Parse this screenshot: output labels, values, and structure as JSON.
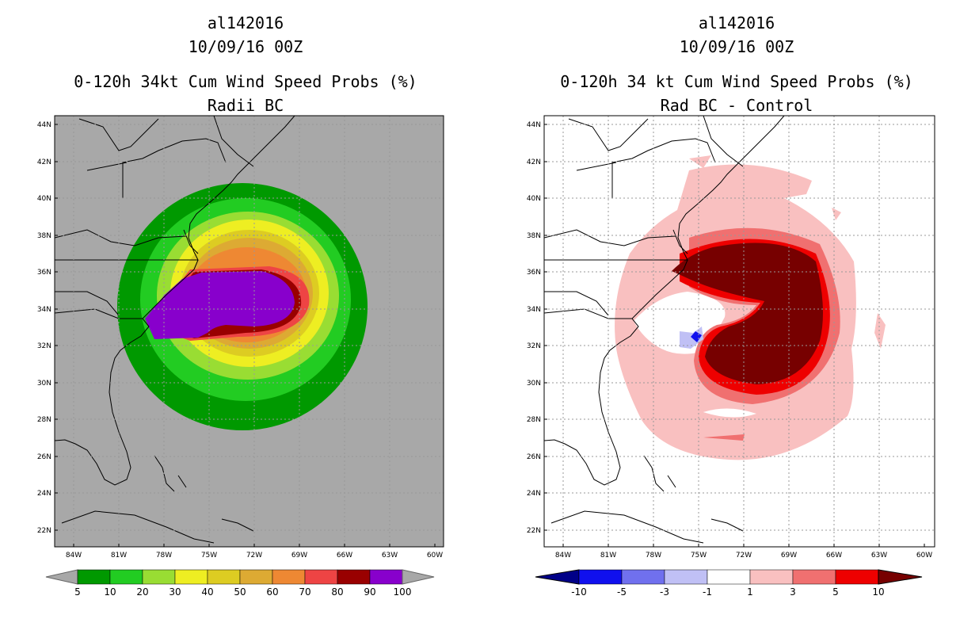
{
  "left_panel": {
    "storm_id": "al142016",
    "date": "10/09/16 00Z",
    "product": "0-120h 34kt Cum Wind Speed Probs (%)",
    "subtitle": "Radii BC",
    "colorbar": {
      "labels": [
        "5",
        "10",
        "20",
        "30",
        "40",
        "50",
        "60",
        "70",
        "80",
        "90",
        "100"
      ],
      "colors": [
        "#009900",
        "#22cc22",
        "#99dd33",
        "#eeee22",
        "#ddcc22",
        "#ddaa33",
        "#ee8833",
        "#ee4444",
        "#990000",
        "#8800cc"
      ]
    }
  },
  "right_panel": {
    "storm_id": "al142016",
    "date": "10/09/16 00Z",
    "product": "0-120h 34 kt Cum Wind Speed Probs (%)",
    "subtitle": "Rad BC - Control",
    "colorbar": {
      "labels": [
        "-10",
        "-5",
        "-3",
        "-1",
        "1",
        "3",
        "5",
        "10"
      ],
      "colors": [
        "#000088",
        "#1010ee",
        "#7070ee",
        "#c0c0f5",
        "#ffffff",
        "#f9c0c0",
        "#f07070",
        "#ee0000",
        "#770000"
      ]
    }
  },
  "axes": {
    "lat_labels": [
      "44N",
      "42N",
      "40N",
      "38N",
      "36N",
      "34N",
      "32N",
      "30N",
      "28N",
      "26N",
      "24N",
      "22N"
    ],
    "lon_labels": [
      "84W",
      "81W",
      "78W",
      "75W",
      "72W",
      "69W",
      "66W",
      "63W",
      "60W"
    ]
  },
  "colors": {
    "land_background": "#a8a8a8",
    "ocean_background": "#ffffff"
  }
}
